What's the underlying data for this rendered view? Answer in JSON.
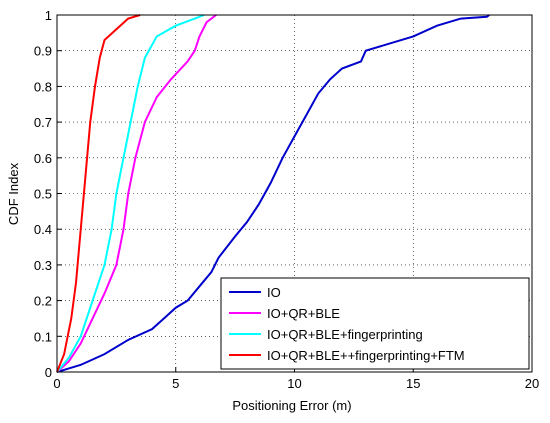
{
  "chart_data": {
    "type": "line",
    "xlabel": "Positioning Error (m)",
    "ylabel": "CDF Index",
    "xlim": [
      0,
      20
    ],
    "ylim": [
      0,
      1
    ],
    "xticks": [
      0,
      5,
      10,
      15,
      20
    ],
    "yticks": [
      0,
      0.1,
      0.2,
      0.3,
      0.4,
      0.5,
      0.6,
      0.7,
      0.8,
      0.9,
      1
    ],
    "grid": true,
    "legend": "lower right",
    "series": [
      {
        "name": "IO",
        "color": "#0000cc",
        "x": [
          0,
          0.5,
          1,
          2,
          3,
          4,
          4.5,
          5,
          5.5,
          6,
          6.5,
          6.8,
          7.5,
          8,
          8.5,
          9,
          9.5,
          10,
          10.5,
          11,
          11.5,
          12,
          12.8,
          13,
          14,
          15,
          16,
          17,
          18.1,
          18.2
        ],
        "values": [
          0,
          0.01,
          0.02,
          0.05,
          0.09,
          0.12,
          0.15,
          0.18,
          0.2,
          0.24,
          0.28,
          0.32,
          0.38,
          0.42,
          0.47,
          0.53,
          0.6,
          0.66,
          0.72,
          0.78,
          0.82,
          0.85,
          0.87,
          0.9,
          0.92,
          0.94,
          0.97,
          0.99,
          0.995,
          1
        ]
      },
      {
        "name": "IO+QR+BLE",
        "color": "#ff00ff",
        "x": [
          0,
          0.5,
          1,
          1.5,
          2,
          2.5,
          2.8,
          3,
          3.3,
          3.7,
          4.2,
          4.8,
          5.5,
          5.8,
          6,
          6.3,
          6.7
        ],
        "values": [
          0,
          0.03,
          0.08,
          0.15,
          0.22,
          0.3,
          0.4,
          0.5,
          0.6,
          0.7,
          0.77,
          0.82,
          0.87,
          0.9,
          0.94,
          0.98,
          1
        ]
      },
      {
        "name": "IO+QR+BLE+fingerprinting",
        "color": "#00ffff",
        "x": [
          0,
          0.5,
          1,
          1.5,
          2,
          2.3,
          2.5,
          2.8,
          3.1,
          3.4,
          3.7,
          4.2,
          5,
          5.8,
          6.2
        ],
        "values": [
          0,
          0.04,
          0.1,
          0.2,
          0.3,
          0.4,
          0.5,
          0.6,
          0.7,
          0.8,
          0.88,
          0.94,
          0.97,
          0.99,
          1
        ]
      },
      {
        "name": "IO+QR+BLE++fingerprinting+FTM",
        "color": "#ff0000",
        "x": [
          0,
          0.3,
          0.6,
          0.8,
          1,
          1.2,
          1.4,
          1.6,
          1.8,
          2,
          2.5,
          3,
          3.5
        ],
        "values": [
          0,
          0.05,
          0.15,
          0.25,
          0.4,
          0.55,
          0.7,
          0.8,
          0.88,
          0.93,
          0.96,
          0.99,
          1
        ]
      }
    ]
  }
}
